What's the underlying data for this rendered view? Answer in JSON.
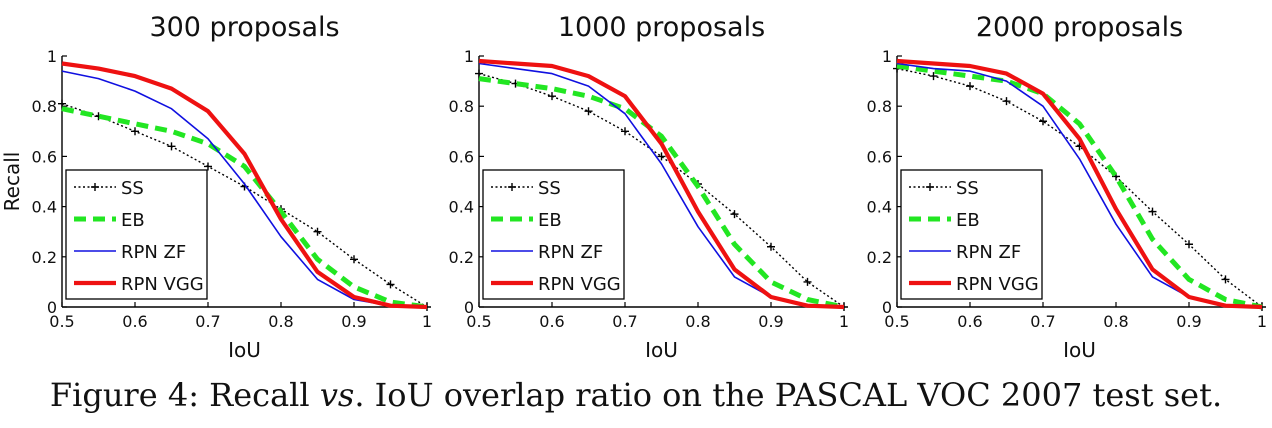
{
  "figure": {
    "caption_prefix": "Figure 4: Recall ",
    "caption_em": "vs",
    "caption_suffix": ". IoU overlap ratio on the PASCAL VOC 2007 test set."
  },
  "chart_data": [
    {
      "type": "line",
      "title": "300 proposals",
      "xlabel": "IoU",
      "ylabel": "Recall",
      "xlim": [
        0.5,
        1
      ],
      "ylim": [
        0,
        1
      ],
      "xticks": [
        "0.5",
        "0.6",
        "0.7",
        "0.8",
        "0.9",
        "1"
      ],
      "yticks": [
        "0",
        "0.2",
        "0.4",
        "0.6",
        "0.8",
        "1"
      ],
      "grid": false,
      "legend_position": "bottom-left",
      "x": [
        0.5,
        0.55,
        0.6,
        0.65,
        0.7,
        0.75,
        0.8,
        0.85,
        0.9,
        0.95,
        1.0
      ],
      "series": [
        {
          "name": "SS",
          "style": "dotted-plus",
          "color": "#000000",
          "values": [
            0.81,
            0.76,
            0.7,
            0.64,
            0.56,
            0.48,
            0.39,
            0.3,
            0.19,
            0.09,
            0.0
          ]
        },
        {
          "name": "EB",
          "style": "dashed",
          "color": "#22e622",
          "values": [
            0.79,
            0.76,
            0.73,
            0.7,
            0.65,
            0.56,
            0.38,
            0.19,
            0.08,
            0.02,
            0.0
          ]
        },
        {
          "name": "RPN ZF",
          "style": "solid-thin",
          "color": "#1010e0",
          "values": [
            0.94,
            0.91,
            0.86,
            0.79,
            0.67,
            0.49,
            0.28,
            0.11,
            0.03,
            0.005,
            0.0
          ]
        },
        {
          "name": "RPN VGG",
          "style": "solid-thick",
          "color": "#ee1111",
          "values": [
            0.97,
            0.95,
            0.92,
            0.87,
            0.78,
            0.61,
            0.35,
            0.14,
            0.04,
            0.005,
            0.0
          ]
        }
      ]
    },
    {
      "type": "line",
      "title": "1000 proposals",
      "xlabel": "IoU",
      "ylabel": "",
      "xlim": [
        0.5,
        1
      ],
      "ylim": [
        0,
        1
      ],
      "xticks": [
        "0.5",
        "0.6",
        "0.7",
        "0.8",
        "0.9",
        "1"
      ],
      "yticks": [
        "0",
        "0.2",
        "0.4",
        "0.6",
        "0.8",
        "1"
      ],
      "grid": false,
      "legend_position": "bottom-left",
      "x": [
        0.5,
        0.55,
        0.6,
        0.65,
        0.7,
        0.75,
        0.8,
        0.85,
        0.9,
        0.95,
        1.0
      ],
      "series": [
        {
          "name": "SS",
          "style": "dotted-plus",
          "color": "#000000",
          "values": [
            0.93,
            0.89,
            0.84,
            0.78,
            0.7,
            0.6,
            0.49,
            0.37,
            0.24,
            0.1,
            0.0
          ]
        },
        {
          "name": "EB",
          "style": "dashed",
          "color": "#22e622",
          "values": [
            0.91,
            0.89,
            0.87,
            0.84,
            0.79,
            0.68,
            0.48,
            0.25,
            0.1,
            0.03,
            0.0
          ]
        },
        {
          "name": "RPN ZF",
          "style": "solid-thin",
          "color": "#1010e0",
          "values": [
            0.97,
            0.95,
            0.93,
            0.88,
            0.77,
            0.57,
            0.32,
            0.12,
            0.04,
            0.005,
            0.0
          ]
        },
        {
          "name": "RPN VGG",
          "style": "solid-thick",
          "color": "#ee1111",
          "values": [
            0.98,
            0.97,
            0.96,
            0.92,
            0.84,
            0.65,
            0.38,
            0.15,
            0.04,
            0.005,
            0.0
          ]
        }
      ]
    },
    {
      "type": "line",
      "title": "2000 proposals",
      "xlabel": "IoU",
      "ylabel": "",
      "xlim": [
        0.5,
        1
      ],
      "ylim": [
        0,
        1
      ],
      "xticks": [
        "0.5",
        "0.6",
        "0.7",
        "0.8",
        "0.9",
        "1"
      ],
      "yticks": [
        "0",
        "0.2",
        "0.4",
        "0.6",
        "0.8",
        "1"
      ],
      "grid": false,
      "legend_position": "bottom-left",
      "x": [
        0.5,
        0.55,
        0.6,
        0.65,
        0.7,
        0.75,
        0.8,
        0.85,
        0.9,
        0.95,
        1.0
      ],
      "series": [
        {
          "name": "SS",
          "style": "dotted-plus",
          "color": "#000000",
          "values": [
            0.95,
            0.92,
            0.88,
            0.82,
            0.74,
            0.64,
            0.52,
            0.38,
            0.25,
            0.11,
            0.0
          ]
        },
        {
          "name": "EB",
          "style": "dashed",
          "color": "#22e622",
          "values": [
            0.96,
            0.94,
            0.92,
            0.9,
            0.85,
            0.73,
            0.52,
            0.27,
            0.11,
            0.03,
            0.0
          ]
        },
        {
          "name": "RPN ZF",
          "style": "solid-thin",
          "color": "#1010e0",
          "values": [
            0.97,
            0.95,
            0.94,
            0.9,
            0.8,
            0.59,
            0.33,
            0.12,
            0.04,
            0.005,
            0.0
          ]
        },
        {
          "name": "RPN VGG",
          "style": "solid-thick",
          "color": "#ee1111",
          "values": [
            0.98,
            0.97,
            0.96,
            0.93,
            0.85,
            0.67,
            0.39,
            0.15,
            0.04,
            0.005,
            0.0
          ]
        }
      ]
    }
  ]
}
